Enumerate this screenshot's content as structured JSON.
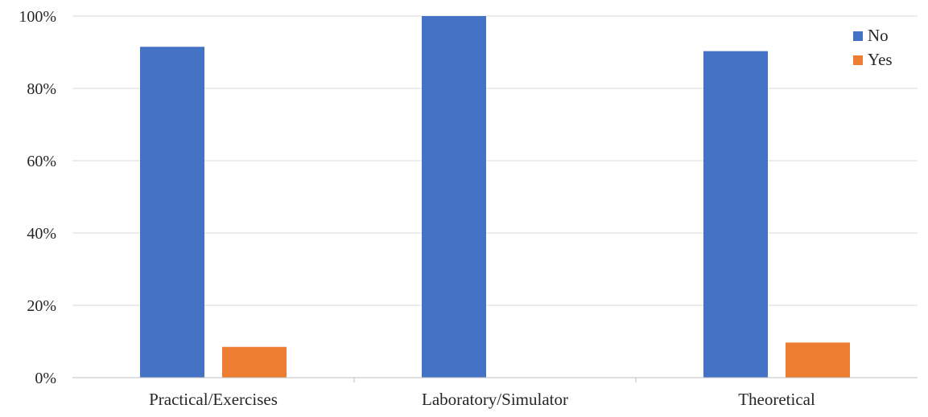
{
  "chart_data": {
    "type": "bar",
    "title": "",
    "xlabel": "",
    "ylabel": "",
    "categories": [
      "Practical/Exercises",
      "Laboratory/Simulator",
      "Theoretical"
    ],
    "series": [
      {
        "name": "No",
        "values": [
          91.5,
          100,
          90.3
        ],
        "color": "#4472C4"
      },
      {
        "name": "Yes",
        "values": [
          8.5,
          0,
          9.7
        ],
        "color": "#ED7D31"
      }
    ],
    "ylim": [
      0,
      100
    ],
    "y_ticks": [
      0,
      20,
      40,
      60,
      80,
      100
    ],
    "y_tick_labels": [
      "0%",
      "20%",
      "40%",
      "60%",
      "80%",
      "100%"
    ],
    "y_format": "percent",
    "grid": true,
    "legend_position": "top-right"
  }
}
